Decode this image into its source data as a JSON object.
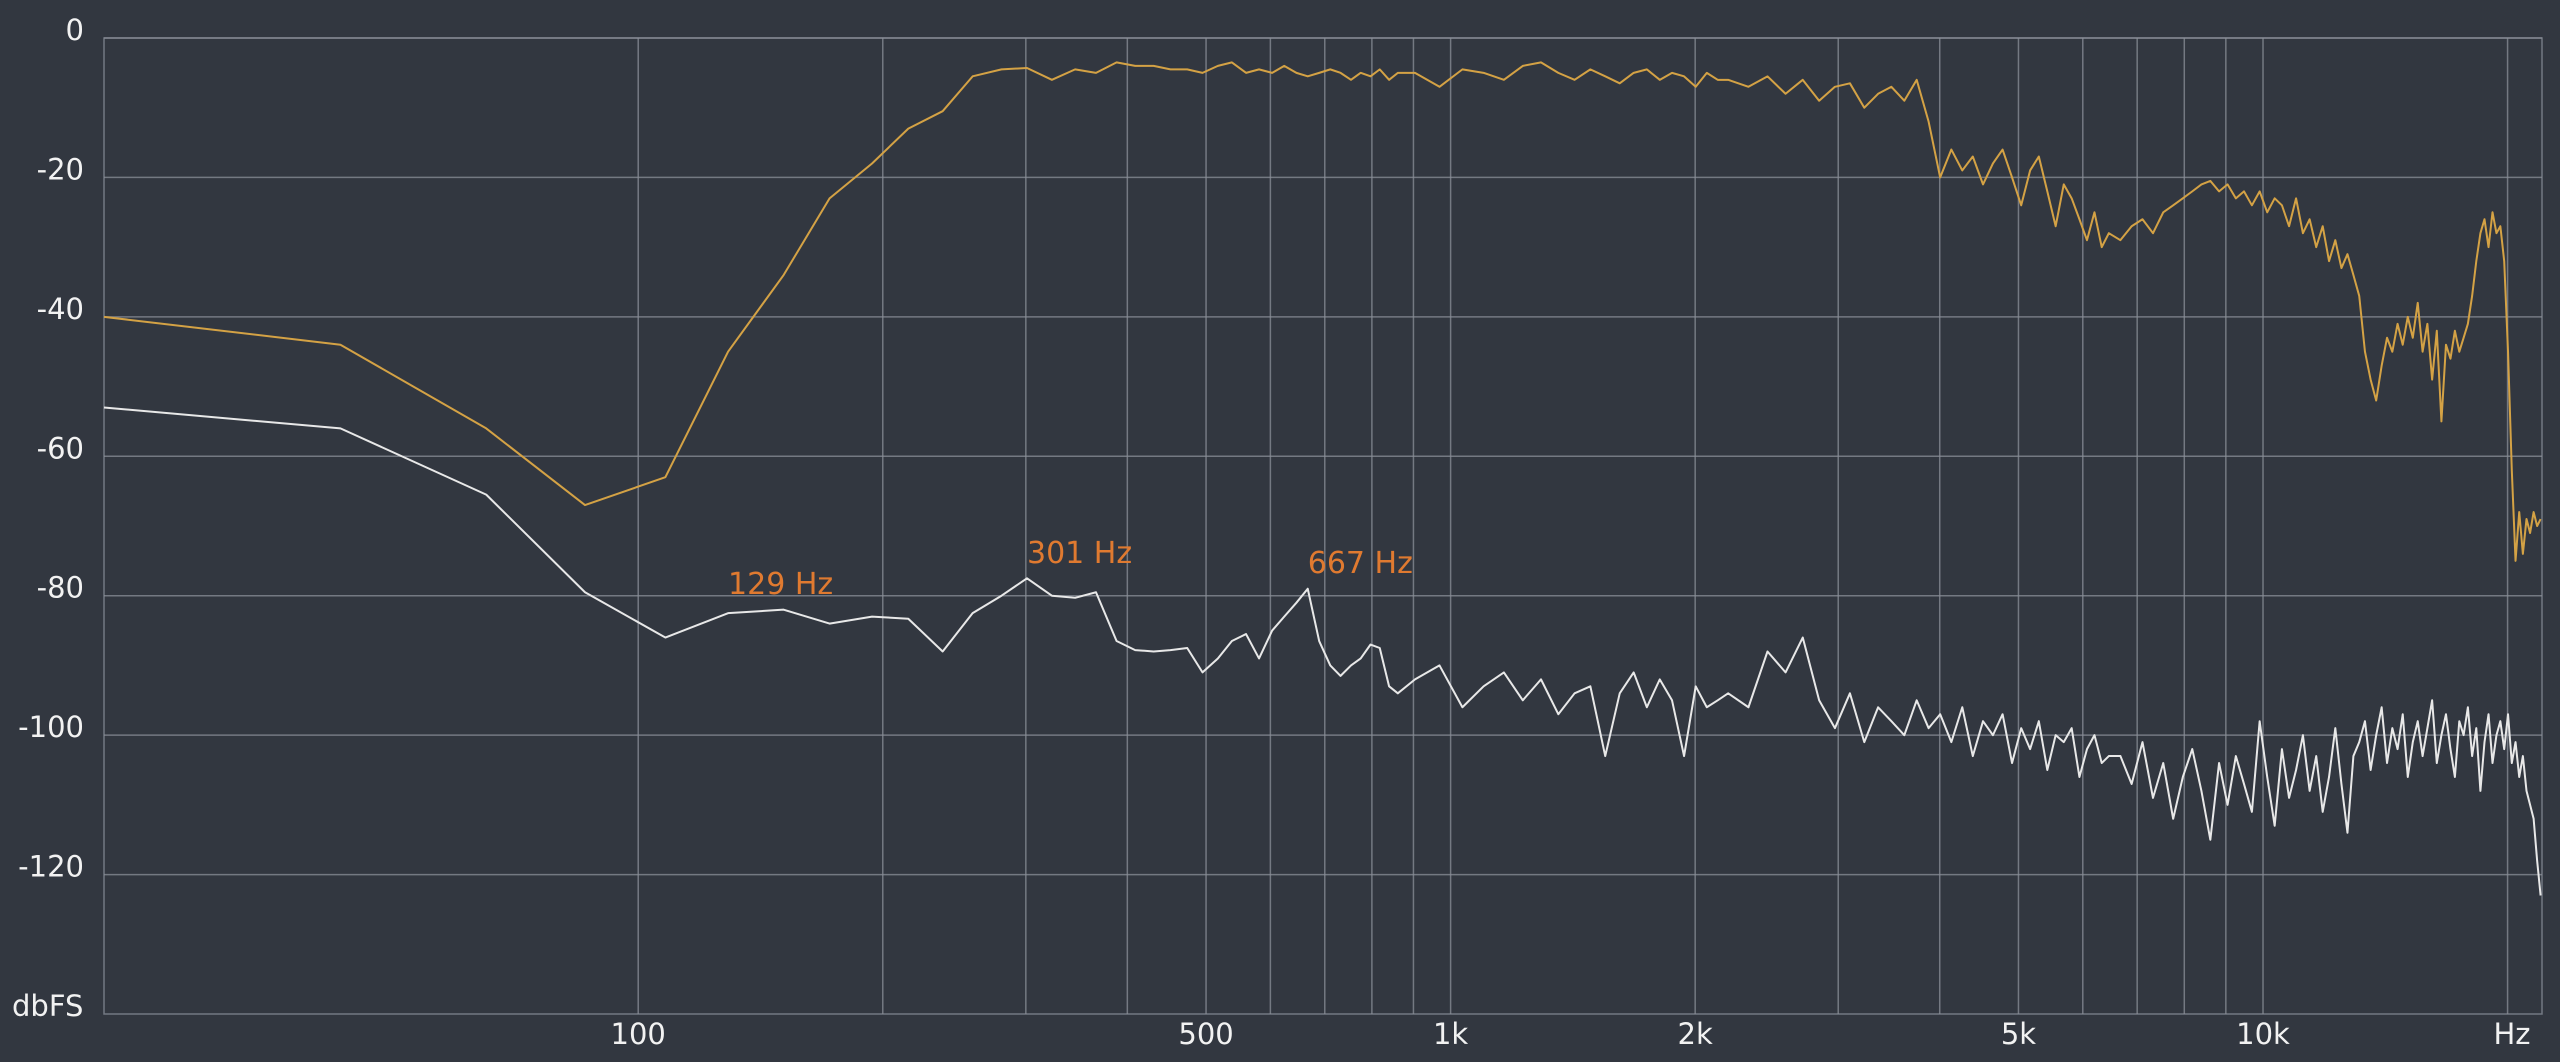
{
  "chart_data": {
    "type": "line",
    "x_scale": "log",
    "grid": true,
    "x_label": "Hz",
    "y_label": "dbFS",
    "xlim": [
      22,
      22050
    ],
    "ylim": [
      -140,
      0
    ],
    "yticks": [
      0,
      -20,
      -40,
      -60,
      -80,
      -100,
      -120
    ],
    "xticks": [
      100,
      500,
      {
        "value": 1000,
        "label": "1k"
      },
      {
        "value": 2000,
        "label": "2k"
      },
      {
        "value": 5000,
        "label": "5k"
      },
      {
        "value": 10000,
        "label": "10k"
      }
    ],
    "xminor": [
      200,
      300,
      400,
      600,
      700,
      800,
      900,
      3000,
      4000,
      6000,
      7000,
      8000,
      9000,
      20000
    ],
    "x": [
      22,
      43,
      65,
      86,
      108,
      129,
      151,
      172,
      194,
      215,
      237,
      258,
      280,
      301,
      323,
      345,
      366,
      388,
      409,
      431,
      452,
      474,
      495,
      517,
      538,
      560,
      581,
      603,
      624,
      646,
      667,
      689,
      711,
      732,
      754,
      775,
      797,
      818,
      840,
      861,
      904,
      969,
      1034,
      1098,
      1163,
      1227,
      1292,
      1357,
      1421,
      1486,
      1550,
      1615,
      1680,
      1744,
      1809,
      1873,
      1938,
      2003,
      2067,
      2132,
      2196,
      2326,
      2455,
      2584,
      2713,
      2842,
      2972,
      3101,
      3230,
      3359,
      3488,
      3618,
      3747,
      3876,
      4005,
      4134,
      4264,
      4393,
      4522,
      4651,
      4780,
      4910,
      5039,
      5168,
      5297,
      5426,
      5556,
      5685,
      5814,
      5943,
      6072,
      6202,
      6331,
      6460,
      6675,
      6891,
      7106,
      7321,
      7537,
      7752,
      7967,
      8183,
      8398,
      8613,
      8829,
      9044,
      9259,
      9475,
      9690,
      9905,
      10120,
      10336,
      10551,
      10766,
      10982,
      11197,
      11412,
      11628,
      11843,
      12058,
      12274,
      12489,
      12704,
      12920,
      13135,
      13350,
      13566,
      13781,
      13997,
      14212,
      14427,
      14643,
      14858,
      15073,
      15288,
      15504,
      15719,
      15934,
      16150,
      16365,
      16580,
      16796,
      17011,
      17226,
      17442,
      17657,
      17872,
      18088,
      18303,
      18518,
      18734,
      18949,
      19164,
      19380,
      19595,
      19810,
      20026,
      20241,
      20456,
      20672,
      20887,
      21102,
      21318,
      21533,
      21748,
      21963
    ],
    "series": [
      {
        "color": "#d4a245",
        "values": [
          -40,
          -44,
          -56,
          -67,
          -63,
          -45,
          -34,
          -23,
          -18,
          -13,
          -10.5,
          -5.5,
          -4.5,
          -4.3,
          -6,
          -4.5,
          -5,
          -3.5,
          -4,
          -4,
          -4.5,
          -4.5,
          -5,
          -4,
          -3.5,
          -5,
          -4.5,
          -5,
          -4,
          -5,
          -5.5,
          -5,
          -4.5,
          -5,
          -6,
          -5,
          -5.5,
          -4.5,
          -6,
          -5,
          -5,
          -7,
          -4.5,
          -5,
          -6,
          -4,
          -3.5,
          -5,
          -6,
          -4.5,
          -5.5,
          -6.5,
          -5,
          -4.5,
          -6,
          -5,
          -5.5,
          -7,
          -5,
          -6,
          -6,
          -7,
          -5.5,
          -8,
          -6,
          -9,
          -7,
          -6.5,
          -10,
          -8,
          -7,
          -9,
          -6,
          -12,
          -20,
          -16,
          -19,
          -17,
          -21,
          -18,
          -16,
          -20,
          -24,
          -19,
          -17,
          -22,
          -27,
          -21,
          -23,
          -26,
          -29,
          -25,
          -30,
          -28,
          -29,
          -27,
          -26,
          -28,
          -25,
          -24,
          -23,
          -22,
          -21,
          -20.5,
          -22,
          -21,
          -23,
          -22,
          -24,
          -22,
          -25,
          -23,
          -24,
          -27,
          -23,
          -28,
          -26,
          -30,
          -27,
          -32,
          -29,
          -33,
          -31,
          -34,
          -37,
          -45,
          -49,
          -52,
          -47,
          -43,
          -45,
          -41,
          -44,
          -40,
          -43,
          -38,
          -45,
          -41,
          -49,
          -42,
          -55,
          -44,
          -46,
          -42,
          -45,
          -43,
          -41,
          -37,
          -32,
          -28,
          -26,
          -30,
          -25,
          -28,
          -27,
          -32,
          -45,
          -62,
          -75,
          -68,
          -74,
          -69,
          -71,
          -68,
          -70,
          -69
        ]
      },
      {
        "color": "#e8e8e8",
        "values": [
          -53,
          -56,
          -65.5,
          -79.5,
          -86,
          -82.5,
          -82,
          -84,
          -83,
          -83.3,
          -88,
          -82.5,
          -80,
          -77.5,
          -80,
          -80.3,
          -79.5,
          -86.5,
          -87.8,
          -88,
          -87.8,
          -87.5,
          -91,
          -89,
          -86.5,
          -85.5,
          -89,
          -85,
          -83,
          -81,
          -79,
          -86.5,
          -90,
          -91.5,
          -90,
          -89,
          -87,
          -87.5,
          -93,
          -94,
          -92,
          -90,
          -96,
          -93,
          -91,
          -95,
          -92,
          -97,
          -94,
          -93,
          -103,
          -94,
          -91,
          -96,
          -92,
          -95,
          -103,
          -93,
          -96,
          -95,
          -94,
          -96,
          -88,
          -91,
          -86,
          -95,
          -99,
          -94,
          -101,
          -96,
          -98,
          -100,
          -95,
          -99,
          -97,
          -101,
          -96,
          -103,
          -98,
          -100,
          -97,
          -104,
          -99,
          -102,
          -98,
          -105,
          -100,
          -101,
          -99,
          -106,
          -102,
          -100,
          -104,
          -103,
          -103,
          -107,
          -101,
          -109,
          -104,
          -112,
          -106,
          -102,
          -108,
          -115,
          -104,
          -110,
          -103,
          -107,
          -111,
          -98,
          -106,
          -113,
          -102,
          -109,
          -105,
          -100,
          -108,
          -103,
          -111,
          -106,
          -99,
          -107,
          -114,
          -103,
          -101,
          -98,
          -105,
          -100,
          -96,
          -104,
          -99,
          -102,
          -97,
          -106,
          -101,
          -98,
          -103,
          -99,
          -95,
          -104,
          -100,
          -97,
          -102,
          -106,
          -98,
          -100,
          -96,
          -103,
          -99,
          -108,
          -101,
          -97,
          -104,
          -100,
          -98,
          -102,
          -97,
          -104,
          -101,
          -106,
          -103,
          -108,
          -110,
          -112,
          -118,
          -123
        ]
      }
    ],
    "annotations": [
      {
        "text": "129 Hz",
        "x": 129,
        "y": -82
      },
      {
        "text": "301 Hz",
        "x": 301,
        "y": -77.5
      },
      {
        "text": "667 Hz",
        "x": 667,
        "y": -79
      }
    ]
  }
}
